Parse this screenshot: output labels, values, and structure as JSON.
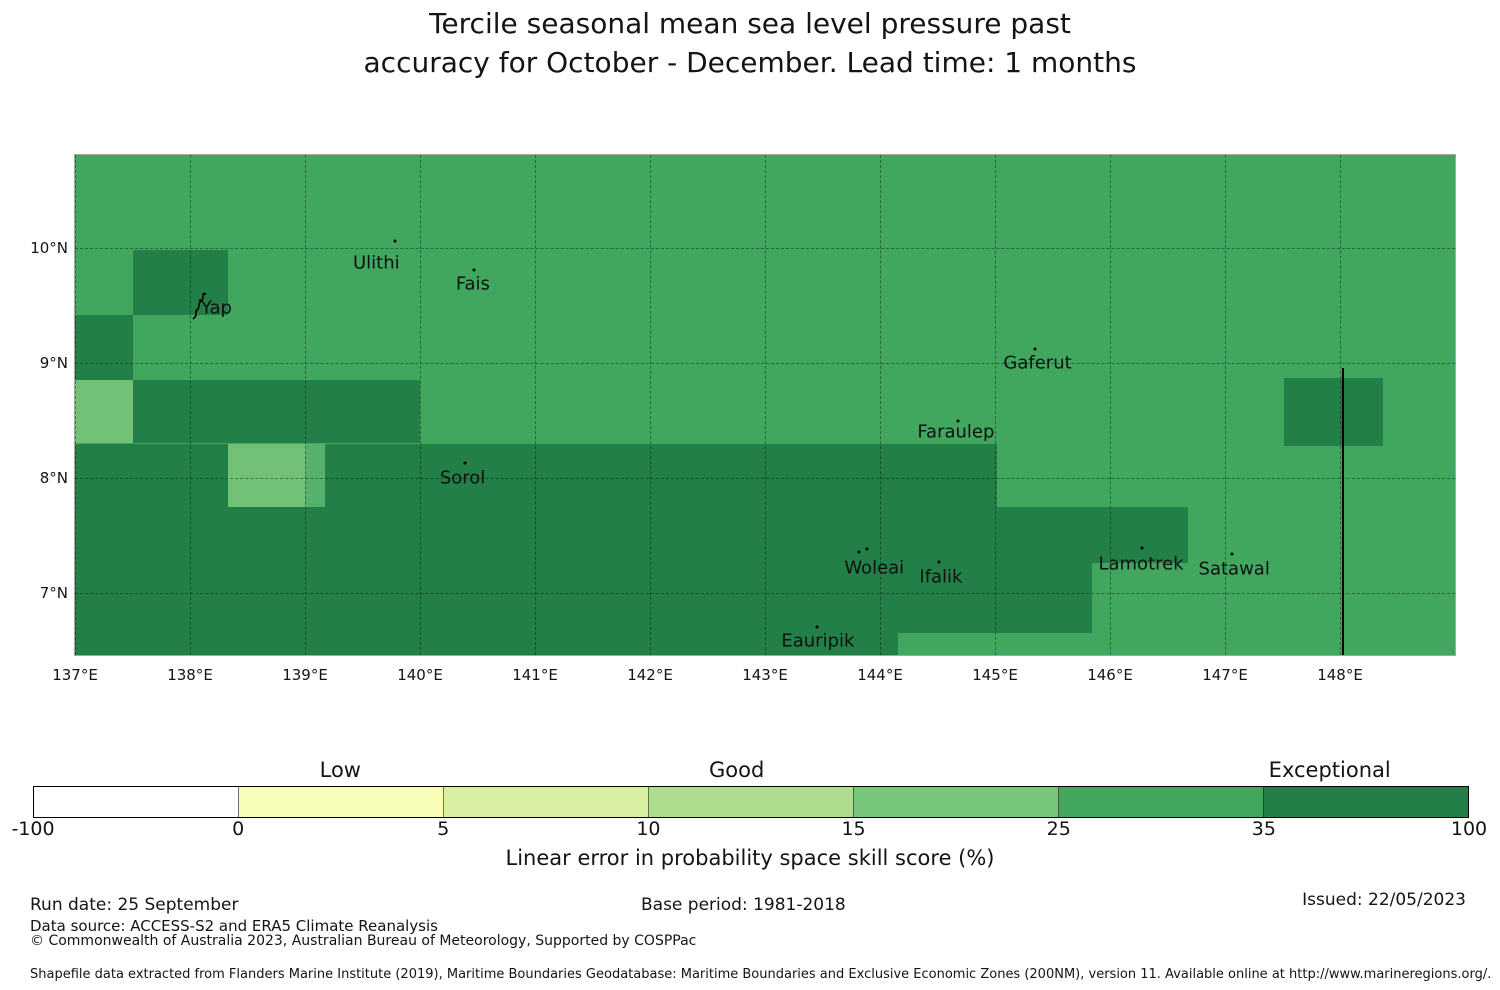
{
  "title": {
    "line1": "Tercile seasonal mean sea level pressure past",
    "line2": "accuracy for October - December. Lead time: 1 months"
  },
  "chart_data": {
    "type": "heatmap",
    "subtype": "geographic skill score map",
    "lon_range": [
      137.0,
      149.0
    ],
    "lat_range": [
      6.46,
      10.81
    ],
    "grid_lons": [
      137,
      138,
      139,
      140,
      141,
      142,
      143,
      144,
      145,
      146,
      147,
      148
    ],
    "grid_lats": [
      7,
      8,
      9,
      10
    ],
    "x_ticks": [
      {
        "label": "137°E",
        "lon": 137
      },
      {
        "label": "138°E",
        "lon": 138
      },
      {
        "label": "139°E",
        "lon": 139
      },
      {
        "label": "140°E",
        "lon": 140
      },
      {
        "label": "141°E",
        "lon": 141
      },
      {
        "label": "142°E",
        "lon": 142
      },
      {
        "label": "143°E",
        "lon": 143
      },
      {
        "label": "144°E",
        "lon": 144
      },
      {
        "label": "145°E",
        "lon": 145
      },
      {
        "label": "146°E",
        "lon": 146
      },
      {
        "label": "147°E",
        "lon": 147
      },
      {
        "label": "148°E",
        "lon": 148
      }
    ],
    "y_ticks": [
      {
        "label": "10°N",
        "lat": 10
      },
      {
        "label": "9°N",
        "lat": 9
      },
      {
        "label": "8°N",
        "lat": 8
      },
      {
        "label": "7°N",
        "lat": 7
      }
    ],
    "palette": {
      "base": "#41a75f",
      "dark": "#237f48",
      "light": "#72c177",
      "mid": "#55b16b"
    },
    "base_skill_bin": "25-35",
    "regions": [
      {
        "shade": "dark",
        "skill_bin": "35-100",
        "lon": [
          137.5,
          138.33
        ],
        "lat": [
          9.42,
          9.98
        ]
      },
      {
        "shade": "dark",
        "skill_bin": "35-100",
        "lon": [
          137.0,
          137.5
        ],
        "lat": [
          8.85,
          9.42
        ]
      },
      {
        "shade": "light",
        "skill_bin": "15-25",
        "lon": [
          137.0,
          137.5
        ],
        "lat": [
          8.3,
          8.85
        ]
      },
      {
        "shade": "dark",
        "skill_bin": "35-100",
        "lon": [
          137.5,
          140.0
        ],
        "lat": [
          8.3,
          8.85
        ]
      },
      {
        "shade": "dark",
        "skill_bin": "35-100",
        "lon": [
          137.0,
          145.02
        ],
        "lat": [
          7.75,
          8.3
        ]
      },
      {
        "shade": "dark",
        "skill_bin": "35-100",
        "lon": [
          137.0,
          146.68
        ],
        "lat": [
          7.26,
          7.75
        ]
      },
      {
        "shade": "dark",
        "skill_bin": "35-100",
        "lon": [
          137.0,
          145.84
        ],
        "lat": [
          6.65,
          7.26
        ]
      },
      {
        "shade": "dark",
        "skill_bin": "35-100",
        "lon": [
          137.0,
          144.16
        ],
        "lat": [
          6.46,
          6.65
        ]
      },
      {
        "shade": "dark",
        "skill_bin": "35-100",
        "lon": [
          147.51,
          148.37
        ],
        "lat": [
          8.28,
          8.87
        ]
      },
      {
        "shade": "light",
        "skill_bin": "15-25",
        "lon": [
          138.33,
          139.0
        ],
        "lat": [
          7.75,
          8.3
        ]
      },
      {
        "shade": "mid",
        "skill_bin": "25-35",
        "lon": [
          139.0,
          139.17
        ],
        "lat": [
          7.75,
          8.3
        ]
      }
    ],
    "islands": [
      {
        "name": "Ulithi",
        "label_lon": 139.62,
        "label_lat": 9.87,
        "dots": [
          {
            "lon": 139.78,
            "lat": 10.06
          }
        ]
      },
      {
        "name": "Fais",
        "label_lon": 140.46,
        "label_lat": 9.69,
        "dots": [
          {
            "lon": 140.47,
            "lat": 9.81
          }
        ]
      },
      {
        "name": "Yap",
        "label_lon": 138.23,
        "label_lat": 9.48,
        "dots": [],
        "glyph": "yap-island-outline"
      },
      {
        "name": "Gaferut",
        "label_lon": 145.37,
        "label_lat": 9.0,
        "dots": [
          {
            "lon": 145.35,
            "lat": 9.12
          }
        ]
      },
      {
        "name": "Faraulep",
        "label_lon": 144.66,
        "label_lat": 8.4,
        "dots": [
          {
            "lon": 144.68,
            "lat": 8.5
          }
        ]
      },
      {
        "name": "Sorol",
        "label_lon": 140.37,
        "label_lat": 8.0,
        "dots": [
          {
            "lon": 140.39,
            "lat": 8.13
          }
        ]
      },
      {
        "name": "Woleai",
        "label_lon": 143.95,
        "label_lat": 7.22,
        "dots": [
          {
            "lon": 143.82,
            "lat": 7.36
          },
          {
            "lon": 143.89,
            "lat": 7.38
          }
        ]
      },
      {
        "name": "Ifalik",
        "label_lon": 144.53,
        "label_lat": 7.14,
        "dots": [
          {
            "lon": 144.51,
            "lat": 7.27
          }
        ]
      },
      {
        "name": "Lamotrek",
        "label_lon": 146.27,
        "label_lat": 7.25,
        "dots": [
          {
            "lon": 146.28,
            "lat": 7.39
          }
        ]
      },
      {
        "name": "Satawal",
        "label_lon": 147.08,
        "label_lat": 7.21,
        "dots": [
          {
            "lon": 147.06,
            "lat": 7.34
          }
        ]
      },
      {
        "name": "Eauripik",
        "label_lon": 143.46,
        "label_lat": 6.58,
        "dots": [
          {
            "lon": 143.45,
            "lat": 6.7
          }
        ]
      }
    ],
    "eez_line": {
      "lon": 148.02,
      "lat_top": 8.96,
      "lat_bottom": 6.46
    },
    "colorbar": {
      "ticks": [
        "-100",
        "0",
        "5",
        "10",
        "15",
        "25",
        "35",
        "100"
      ],
      "segment_colors": [
        "#ffffff",
        "#f7fcb9",
        "#d9f0a3",
        "#addd8e",
        "#78c679",
        "#41a75f",
        "#237f48"
      ],
      "category_labels": [
        {
          "text": "Low",
          "pos_pct": 21.4
        },
        {
          "text": "Good",
          "pos_pct": 49.0
        },
        {
          "text": "Exceptional",
          "pos_pct": 90.3
        }
      ],
      "caption": "Linear error in probability space skill score (%)"
    }
  },
  "footer": {
    "run_date": "Run date: 25 September",
    "base_period": "Base period: 1981-2018",
    "issued": "Issued: 22/05/2023",
    "data_source": "Data source: ACCESS-S2 and ERA5 Climate Reanalysis",
    "copyright": "© Commonwealth of Australia 2023, Australian Bureau of Meteorology, Supported by COSPPac",
    "shapefile_note": "Shapefile data extracted from Flanders Marine Institute (2019), Maritime Boundaries Geodatabase: Maritime Boundaries and Exclusive Economic Zones (200NM), version 11. Available online at http://www.marineregions.org/."
  }
}
